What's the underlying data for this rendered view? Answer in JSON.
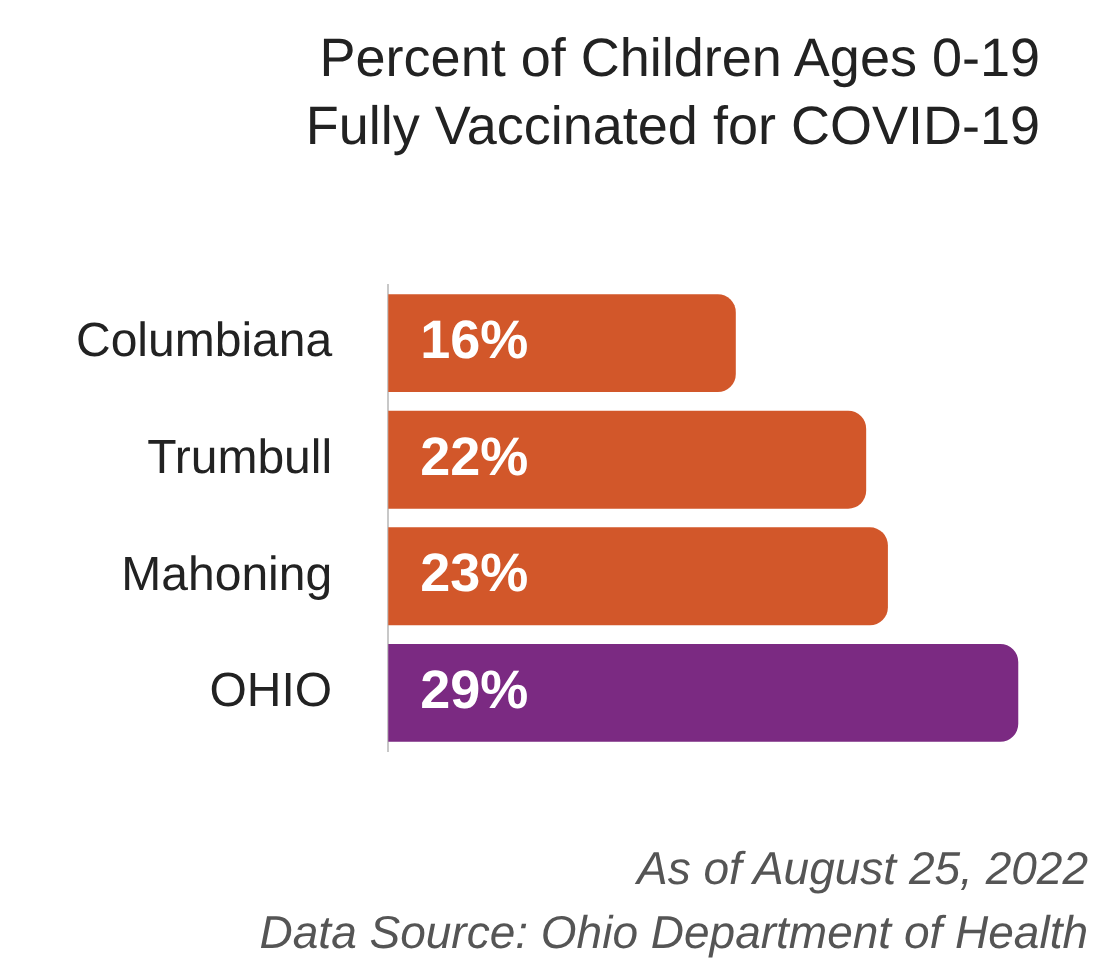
{
  "chart_data": {
    "type": "bar",
    "orientation": "horizontal",
    "title": "Percent of Children Ages 0-19 Fully Vaccinated for COVID-19",
    "categories": [
      "Columbiana",
      "Trumbull",
      "Mahoning",
      "OHIO"
    ],
    "values": [
      16,
      22,
      23,
      29
    ],
    "colors": [
      "#d2572a",
      "#d2572a",
      "#d2572a",
      "#7b2a82"
    ],
    "value_labels": [
      "16%",
      "22%",
      "23%",
      "29%"
    ],
    "annotations": [
      "As of August 25, 2022",
      "Data Source: Ohio Department of Health"
    ],
    "legend": false,
    "grid": false
  }
}
